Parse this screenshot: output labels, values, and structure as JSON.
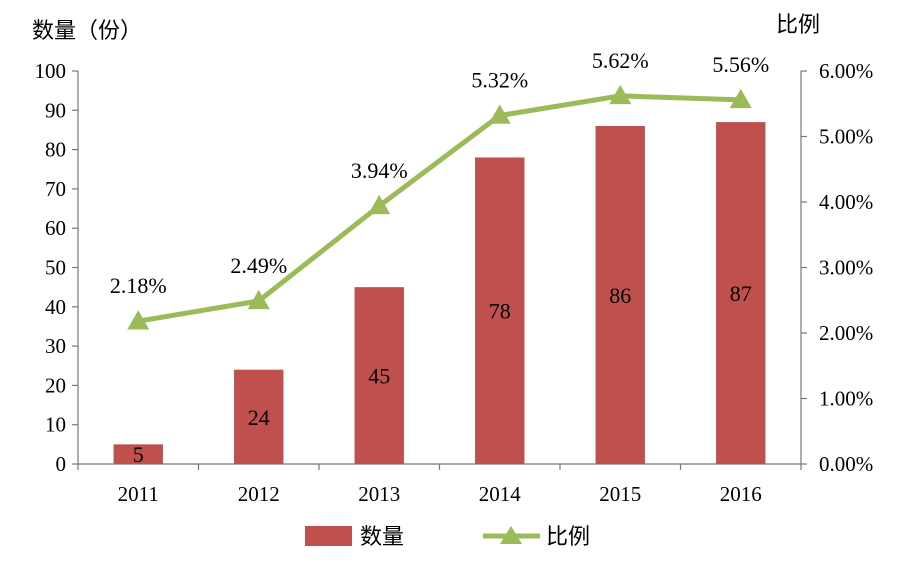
{
  "chart_data": {
    "type": "bar",
    "categories": [
      "2011",
      "2012",
      "2013",
      "2014",
      "2015",
      "2016"
    ],
    "series": [
      {
        "name": "数量",
        "type": "bar",
        "axis": "left",
        "values": [
          5,
          24,
          45,
          78,
          86,
          87
        ],
        "labels": [
          "5",
          "24",
          "45",
          "78",
          "86",
          "87"
        ],
        "color": "#c0504d"
      },
      {
        "name": "比例",
        "type": "line",
        "axis": "right",
        "values": [
          2.18,
          2.49,
          3.94,
          5.32,
          5.62,
          5.56
        ],
        "labels": [
          "2.18%",
          "2.49%",
          "3.94%",
          "5.32%",
          "5.62%",
          "5.56%"
        ],
        "color": "#9bbb59",
        "marker": "triangle"
      }
    ],
    "ylabel": "数量（份）",
    "y2label": "比例",
    "ylim": [
      0,
      100
    ],
    "y2lim": [
      0,
      6
    ],
    "yticks": [
      "0",
      "10",
      "20",
      "30",
      "40",
      "50",
      "60",
      "70",
      "80",
      "90",
      "100"
    ],
    "y2ticks": [
      "0.00%",
      "1.00%",
      "2.00%",
      "3.00%",
      "4.00%",
      "5.00%",
      "6.00%"
    ],
    "grid": false,
    "legend": "bottom-center"
  }
}
